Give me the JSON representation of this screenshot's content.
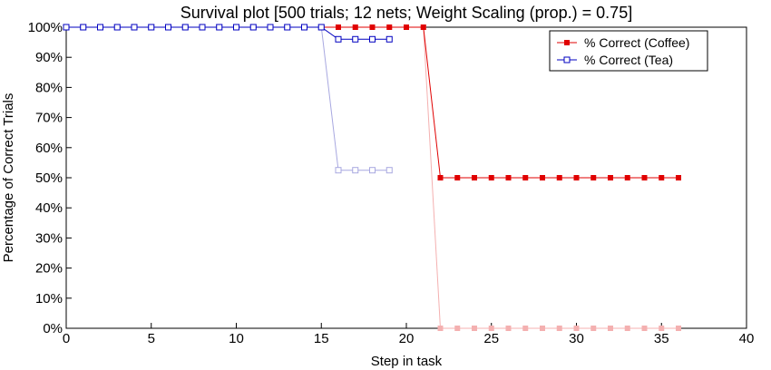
{
  "chart_data": {
    "type": "line",
    "title": "Survival plot [500 trials; 12 nets; Weight Scaling (prop.) = 0.75]",
    "xlabel": "Step in task",
    "ylabel": "Percentage of Correct Trials",
    "xlim": [
      0,
      40
    ],
    "ylim": [
      0,
      100
    ],
    "x_ticks": [
      0,
      5,
      10,
      15,
      20,
      25,
      30,
      35,
      40
    ],
    "y_ticks": [
      0,
      10,
      20,
      30,
      40,
      50,
      60,
      70,
      80,
      90,
      100
    ],
    "y_tick_labels": [
      "0%",
      "10%",
      "20%",
      "30%",
      "40%",
      "50%",
      "60%",
      "70%",
      "80%",
      "90%",
      "100%"
    ],
    "grid": false,
    "legend_position": "top-right",
    "series": [
      {
        "name": "% Correct (Coffee)",
        "color": "#e00000",
        "marker": "filled-square",
        "legend": true,
        "x": [
          0,
          1,
          2,
          3,
          4,
          5,
          6,
          7,
          8,
          9,
          10,
          11,
          12,
          13,
          14,
          15,
          16,
          17,
          18,
          19,
          20,
          21,
          22,
          23,
          24,
          25,
          26,
          27,
          28,
          29,
          30,
          31,
          32,
          33,
          34,
          35,
          36
        ],
        "y": [
          100,
          100,
          100,
          100,
          100,
          100,
          100,
          100,
          100,
          100,
          100,
          100,
          100,
          100,
          100,
          100,
          100,
          100,
          100,
          100,
          100,
          100,
          50,
          50,
          50,
          50,
          50,
          50,
          50,
          50,
          50,
          50,
          50,
          50,
          50,
          50,
          50
        ]
      },
      {
        "name": "% Correct (Tea)",
        "color": "#0000c0",
        "marker": "open-square",
        "legend": true,
        "x": [
          0,
          1,
          2,
          3,
          4,
          5,
          6,
          7,
          8,
          9,
          10,
          11,
          12,
          13,
          14,
          15,
          16,
          17,
          18,
          19
        ],
        "y": [
          100,
          100,
          100,
          100,
          100,
          100,
          100,
          100,
          100,
          100,
          100,
          100,
          100,
          100,
          100,
          100,
          96,
          96,
          96,
          96
        ]
      },
      {
        "name": "",
        "color": "#f4b0b0",
        "marker": "filled-square",
        "legend": false,
        "x": [
          0,
          1,
          2,
          3,
          4,
          5,
          6,
          7,
          8,
          9,
          10,
          11,
          12,
          13,
          14,
          15,
          16,
          17,
          18,
          19,
          20,
          21,
          22,
          23,
          24,
          25,
          26,
          27,
          28,
          29,
          30,
          31,
          32,
          33,
          34,
          35,
          36
        ],
        "y": [
          100,
          100,
          100,
          100,
          100,
          100,
          100,
          100,
          100,
          100,
          100,
          100,
          100,
          100,
          100,
          100,
          100,
          100,
          100,
          100,
          100,
          100,
          0,
          0,
          0,
          0,
          0,
          0,
          0,
          0,
          0,
          0,
          0,
          0,
          0,
          0,
          0
        ]
      },
      {
        "name": "",
        "color": "#a8a8e0",
        "marker": "open-square",
        "legend": false,
        "x": [
          0,
          1,
          2,
          3,
          4,
          5,
          6,
          7,
          8,
          9,
          10,
          11,
          12,
          13,
          14,
          15,
          16,
          17,
          18,
          19
        ],
        "y": [
          100,
          100,
          100,
          100,
          100,
          100,
          100,
          100,
          100,
          100,
          100,
          100,
          100,
          100,
          100,
          100,
          52.5,
          52.5,
          52.5,
          52.5
        ]
      }
    ]
  }
}
